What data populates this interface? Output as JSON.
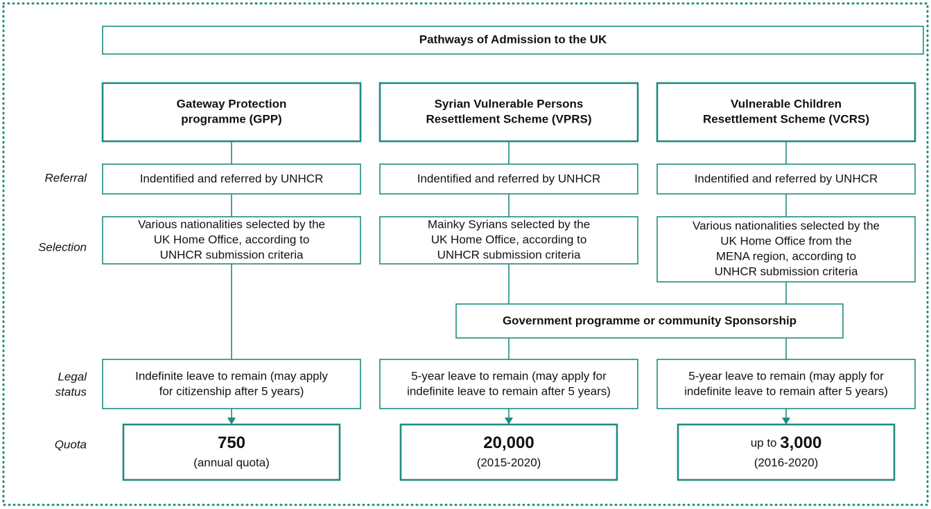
{
  "title": "Pathways of Admission to the UK",
  "row_labels": {
    "referral": [
      "Referral"
    ],
    "selection": [
      "Selection"
    ],
    "legal_status": [
      "Legal",
      "status"
    ],
    "quota": [
      "Quota"
    ]
  },
  "sponsorship": "Government programme or community Sponsorship",
  "columns": [
    {
      "name": [
        "Gateway Protection",
        "programme (GPP)"
      ],
      "referral": [
        "Indentified and referred by UNHCR"
      ],
      "selection": [
        "Various nationalities selected by the",
        "UK Home Office, according to",
        "UNHCR submission criteria"
      ],
      "legal_status": [
        "Indefinite leave to remain (may apply",
        "for citizenship after 5 years)"
      ],
      "quota": {
        "value": "750",
        "note": "(annual quota)"
      }
    },
    {
      "name": [
        "Syrian Vulnerable Persons",
        "Resettlement Scheme (VPRS)"
      ],
      "referral": [
        "Indentified and referred by UNHCR"
      ],
      "selection": [
        "Mainky Syrians selected by the",
        "UK Home Office, according to",
        "UNHCR submission criteria"
      ],
      "legal_status": [
        "5-year leave to remain (may apply for",
        "indefinite leave to remain after 5 years)"
      ],
      "quota": {
        "value": "20,000",
        "note": "(2015-2020)"
      }
    },
    {
      "name": [
        "Vulnerable Children",
        "Resettlement Scheme (VCRS)"
      ],
      "referral": [
        "Indentified and referred by UNHCR"
      ],
      "selection": [
        "Various nationalities selected by the",
        "UK Home Office from the",
        "MENA region, according to",
        "UNHCR submission criteria"
      ],
      "legal_status": [
        "5-year leave to remain (may apply for",
        "indefinite leave to remain after 5 years)"
      ],
      "quota": {
        "prefix": "up to",
        "value": "3,000",
        "note": "(2016-2020)"
      }
    }
  ]
}
